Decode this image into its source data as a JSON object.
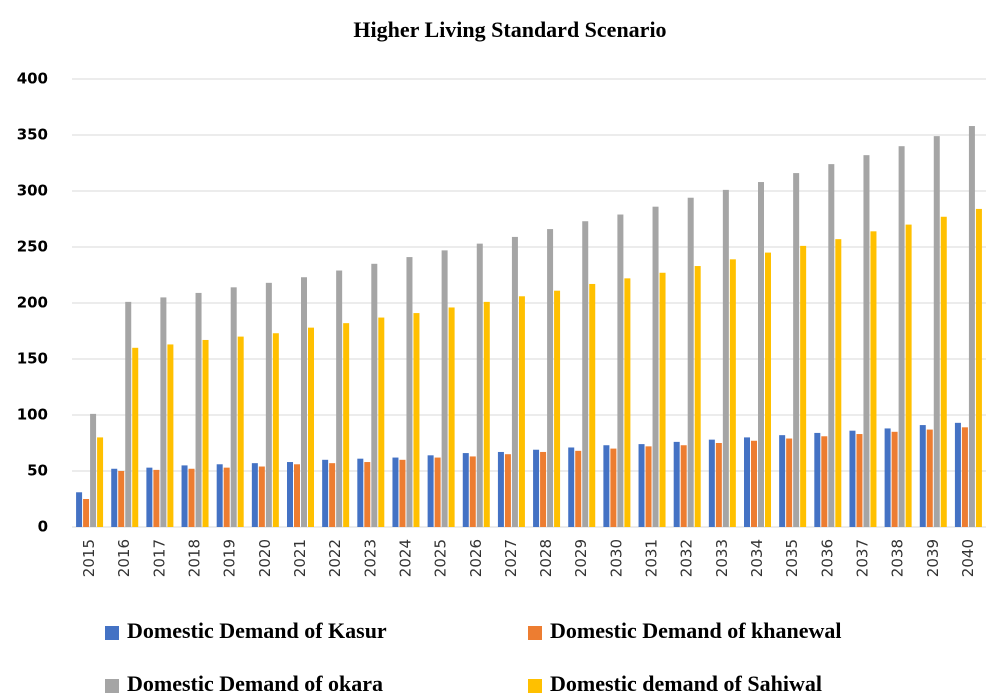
{
  "chart_data": {
    "type": "bar",
    "title": "Higher Living Standard Scenario",
    "categories": [
      "2015",
      "2016",
      "2017",
      "2018",
      "2019",
      "2020",
      "2021",
      "2022",
      "2023",
      "2024",
      "2025",
      "2026",
      "2027",
      "2028",
      "2029",
      "2030",
      "2031",
      "2032",
      "2033",
      "2034",
      "2035",
      "2036",
      "2037",
      "2038",
      "2039",
      "2040"
    ],
    "series": [
      {
        "name": "Domestic Demand of Kasur",
        "color": "#4472c4",
        "values": [
          31,
          52,
          53,
          55,
          56,
          57,
          58,
          60,
          61,
          62,
          64,
          66,
          67,
          69,
          71,
          73,
          74,
          76,
          78,
          80,
          82,
          84,
          86,
          88,
          91,
          93
        ]
      },
      {
        "name": "Domestic Demand of khanewal",
        "color": "#ed7d31",
        "values": [
          25,
          50,
          51,
          52,
          53,
          54,
          56,
          57,
          58,
          60,
          62,
          63,
          65,
          67,
          68,
          70,
          72,
          73,
          75,
          77,
          79,
          81,
          83,
          85,
          87,
          89
        ]
      },
      {
        "name": "Domestic Demand of okara",
        "color": "#a5a5a5",
        "values": [
          101,
          201,
          205,
          209,
          214,
          218,
          223,
          229,
          235,
          241,
          247,
          253,
          259,
          266,
          273,
          279,
          286,
          294,
          301,
          308,
          316,
          324,
          332,
          340,
          349,
          358
        ]
      },
      {
        "name": "Domestic demand of Sahiwal",
        "color": "#ffc000",
        "values": [
          80,
          160,
          163,
          167,
          170,
          173,
          178,
          182,
          187,
          191,
          196,
          201,
          206,
          211,
          217,
          222,
          227,
          233,
          239,
          245,
          251,
          257,
          264,
          270,
          277,
          284
        ]
      }
    ],
    "ylim": [
      0,
      400
    ],
    "yticks": [
      0,
      50,
      100,
      150,
      200,
      250,
      300,
      350,
      400
    ],
    "grid": true,
    "legend": "bottom"
  }
}
